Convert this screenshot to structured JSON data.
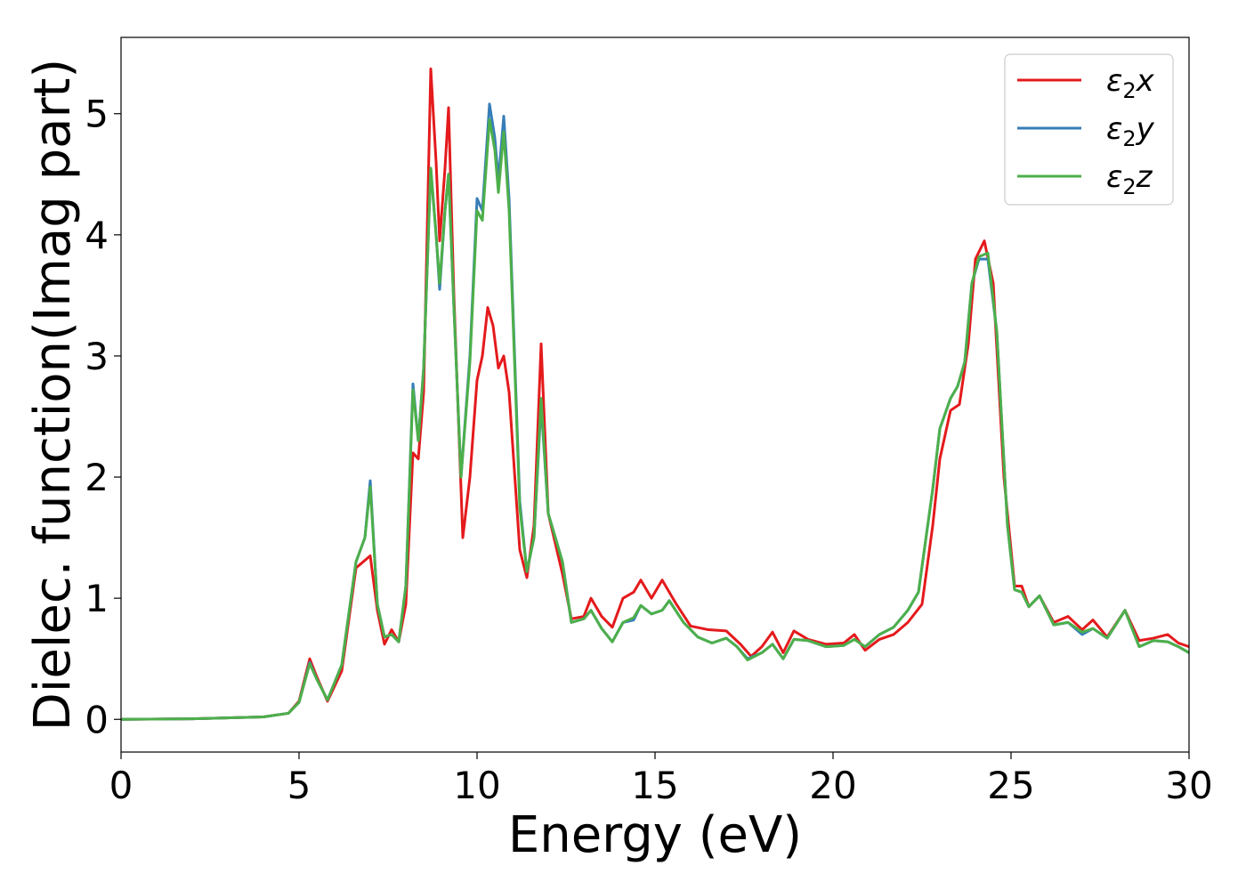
{
  "chart_data": {
    "type": "line",
    "title": "",
    "xlabel": "Energy (eV)",
    "ylabel": "Dielec. function(Imag part)",
    "xlim": [
      0,
      30
    ],
    "ylim": [
      -0.27,
      5.63
    ],
    "xticks": [
      0,
      5,
      10,
      15,
      20,
      25,
      30
    ],
    "yticks": [
      0,
      1,
      2,
      3,
      4,
      5
    ],
    "grid": false,
    "legend": "top-right",
    "series": [
      {
        "name": "ε2x",
        "label_base": "ε",
        "label_sub": "2",
        "label_var": "x",
        "color": "#e41a1c",
        "points": [
          [
            0,
            0
          ],
          [
            2,
            0.005
          ],
          [
            4,
            0.02
          ],
          [
            4.7,
            0.05
          ],
          [
            5.0,
            0.15
          ],
          [
            5.3,
            0.5
          ],
          [
            5.5,
            0.35
          ],
          [
            5.8,
            0.15
          ],
          [
            6.2,
            0.4
          ],
          [
            6.6,
            1.25
          ],
          [
            7.0,
            1.35
          ],
          [
            7.2,
            0.9
          ],
          [
            7.4,
            0.62
          ],
          [
            7.6,
            0.74
          ],
          [
            7.8,
            0.64
          ],
          [
            8.0,
            0.95
          ],
          [
            8.2,
            2.2
          ],
          [
            8.35,
            2.15
          ],
          [
            8.5,
            2.7
          ],
          [
            8.7,
            5.37
          ],
          [
            8.85,
            4.6
          ],
          [
            8.95,
            3.95
          ],
          [
            9.1,
            4.55
          ],
          [
            9.2,
            5.05
          ],
          [
            9.35,
            3.5
          ],
          [
            9.6,
            1.5
          ],
          [
            9.8,
            2.0
          ],
          [
            10.0,
            2.8
          ],
          [
            10.15,
            3.0
          ],
          [
            10.3,
            3.4
          ],
          [
            10.45,
            3.25
          ],
          [
            10.6,
            2.9
          ],
          [
            10.75,
            3.0
          ],
          [
            10.9,
            2.7
          ],
          [
            11.2,
            1.4
          ],
          [
            11.4,
            1.17
          ],
          [
            11.6,
            1.6
          ],
          [
            11.8,
            3.1
          ],
          [
            12.0,
            1.7
          ],
          [
            12.2,
            1.45
          ],
          [
            12.4,
            1.2
          ],
          [
            12.65,
            0.83
          ],
          [
            13.0,
            0.85
          ],
          [
            13.2,
            1.0
          ],
          [
            13.5,
            0.85
          ],
          [
            13.8,
            0.76
          ],
          [
            14.1,
            1.0
          ],
          [
            14.4,
            1.05
          ],
          [
            14.6,
            1.15
          ],
          [
            14.9,
            1.0
          ],
          [
            15.2,
            1.15
          ],
          [
            15.6,
            0.95
          ],
          [
            16.0,
            0.77
          ],
          [
            16.5,
            0.74
          ],
          [
            17.0,
            0.73
          ],
          [
            17.4,
            0.62
          ],
          [
            17.7,
            0.52
          ],
          [
            18.0,
            0.6
          ],
          [
            18.3,
            0.72
          ],
          [
            18.6,
            0.55
          ],
          [
            18.9,
            0.73
          ],
          [
            19.3,
            0.66
          ],
          [
            19.8,
            0.62
          ],
          [
            20.3,
            0.63
          ],
          [
            20.6,
            0.7
          ],
          [
            20.9,
            0.57
          ],
          [
            21.3,
            0.66
          ],
          [
            21.7,
            0.7
          ],
          [
            22.1,
            0.8
          ],
          [
            22.5,
            0.95
          ],
          [
            22.8,
            1.6
          ],
          [
            23.0,
            2.15
          ],
          [
            23.3,
            2.55
          ],
          [
            23.55,
            2.6
          ],
          [
            23.8,
            3.1
          ],
          [
            24.0,
            3.8
          ],
          [
            24.25,
            3.95
          ],
          [
            24.5,
            3.6
          ],
          [
            24.8,
            2.0
          ],
          [
            25.1,
            1.1
          ],
          [
            25.3,
            1.1
          ],
          [
            25.5,
            0.93
          ],
          [
            25.8,
            1.02
          ],
          [
            26.2,
            0.8
          ],
          [
            26.6,
            0.85
          ],
          [
            27.0,
            0.74
          ],
          [
            27.3,
            0.82
          ],
          [
            27.7,
            0.68
          ],
          [
            28.2,
            0.9
          ],
          [
            28.6,
            0.65
          ],
          [
            29.0,
            0.67
          ],
          [
            29.4,
            0.7
          ],
          [
            29.7,
            0.63
          ],
          [
            30.0,
            0.6
          ]
        ]
      },
      {
        "name": "ε2y",
        "label_base": "ε",
        "label_sub": "2",
        "label_var": "y",
        "color": "#377eb8",
        "points": [
          [
            0,
            0
          ],
          [
            2,
            0.005
          ],
          [
            4,
            0.02
          ],
          [
            4.7,
            0.05
          ],
          [
            5.0,
            0.14
          ],
          [
            5.3,
            0.47
          ],
          [
            5.5,
            0.33
          ],
          [
            5.8,
            0.16
          ],
          [
            6.2,
            0.45
          ],
          [
            6.6,
            1.3
          ],
          [
            6.85,
            1.5
          ],
          [
            7.0,
            1.97
          ],
          [
            7.2,
            0.95
          ],
          [
            7.4,
            0.68
          ],
          [
            7.6,
            0.7
          ],
          [
            7.8,
            0.64
          ],
          [
            8.0,
            1.1
          ],
          [
            8.2,
            2.77
          ],
          [
            8.35,
            2.3
          ],
          [
            8.5,
            2.9
          ],
          [
            8.7,
            4.55
          ],
          [
            8.85,
            4.0
          ],
          [
            8.95,
            3.55
          ],
          [
            9.1,
            4.2
          ],
          [
            9.2,
            4.5
          ],
          [
            9.35,
            3.4
          ],
          [
            9.55,
            2.0
          ],
          [
            9.8,
            3.0
          ],
          [
            10.0,
            4.3
          ],
          [
            10.15,
            4.2
          ],
          [
            10.35,
            5.08
          ],
          [
            10.5,
            4.8
          ],
          [
            10.6,
            4.45
          ],
          [
            10.75,
            4.98
          ],
          [
            10.9,
            4.3
          ],
          [
            11.2,
            1.8
          ],
          [
            11.4,
            1.22
          ],
          [
            11.6,
            1.5
          ],
          [
            11.8,
            2.6
          ],
          [
            12.0,
            1.7
          ],
          [
            12.2,
            1.5
          ],
          [
            12.4,
            1.3
          ],
          [
            12.65,
            0.8
          ],
          [
            13.0,
            0.83
          ],
          [
            13.2,
            0.9
          ],
          [
            13.5,
            0.75
          ],
          [
            13.8,
            0.64
          ],
          [
            14.1,
            0.8
          ],
          [
            14.4,
            0.82
          ],
          [
            14.6,
            0.94
          ],
          [
            14.9,
            0.87
          ],
          [
            15.2,
            0.9
          ],
          [
            15.4,
            0.98
          ],
          [
            15.8,
            0.8
          ],
          [
            16.2,
            0.68
          ],
          [
            16.6,
            0.63
          ],
          [
            17.0,
            0.67
          ],
          [
            17.3,
            0.6
          ],
          [
            17.6,
            0.5
          ],
          [
            18.0,
            0.55
          ],
          [
            18.3,
            0.62
          ],
          [
            18.6,
            0.5
          ],
          [
            18.9,
            0.66
          ],
          [
            19.3,
            0.65
          ],
          [
            19.8,
            0.6
          ],
          [
            20.3,
            0.61
          ],
          [
            20.6,
            0.66
          ],
          [
            20.9,
            0.6
          ],
          [
            21.3,
            0.7
          ],
          [
            21.7,
            0.76
          ],
          [
            22.1,
            0.9
          ],
          [
            22.4,
            1.05
          ],
          [
            22.8,
            1.9
          ],
          [
            23.0,
            2.4
          ],
          [
            23.3,
            2.65
          ],
          [
            23.5,
            2.75
          ],
          [
            23.7,
            2.95
          ],
          [
            23.9,
            3.6
          ],
          [
            24.1,
            3.8
          ],
          [
            24.35,
            3.8
          ],
          [
            24.6,
            3.2
          ],
          [
            24.9,
            1.6
          ],
          [
            25.1,
            1.07
          ],
          [
            25.3,
            1.05
          ],
          [
            25.5,
            0.93
          ],
          [
            25.8,
            1.02
          ],
          [
            26.2,
            0.78
          ],
          [
            26.6,
            0.8
          ],
          [
            27.0,
            0.7
          ],
          [
            27.3,
            0.75
          ],
          [
            27.7,
            0.67
          ],
          [
            28.2,
            0.9
          ],
          [
            28.6,
            0.6
          ],
          [
            29.0,
            0.65
          ],
          [
            29.4,
            0.64
          ],
          [
            29.7,
            0.6
          ],
          [
            30.0,
            0.55
          ]
        ]
      },
      {
        "name": "ε2z",
        "label_base": "ε",
        "label_sub": "2",
        "label_var": "z",
        "color": "#4daf4a",
        "points": [
          [
            0,
            0
          ],
          [
            2,
            0.005
          ],
          [
            4,
            0.02
          ],
          [
            4.7,
            0.05
          ],
          [
            5.0,
            0.14
          ],
          [
            5.3,
            0.46
          ],
          [
            5.5,
            0.33
          ],
          [
            5.8,
            0.16
          ],
          [
            6.2,
            0.45
          ],
          [
            6.6,
            1.3
          ],
          [
            6.85,
            1.5
          ],
          [
            7.0,
            1.92
          ],
          [
            7.2,
            0.95
          ],
          [
            7.4,
            0.68
          ],
          [
            7.6,
            0.7
          ],
          [
            7.8,
            0.64
          ],
          [
            8.0,
            1.1
          ],
          [
            8.2,
            2.72
          ],
          [
            8.35,
            2.3
          ],
          [
            8.5,
            2.9
          ],
          [
            8.7,
            4.55
          ],
          [
            8.85,
            4.0
          ],
          [
            8.95,
            3.6
          ],
          [
            9.1,
            4.2
          ],
          [
            9.2,
            4.5
          ],
          [
            9.35,
            3.4
          ],
          [
            9.55,
            2.0
          ],
          [
            9.8,
            2.95
          ],
          [
            10.0,
            4.2
          ],
          [
            10.15,
            4.12
          ],
          [
            10.35,
            4.95
          ],
          [
            10.5,
            4.7
          ],
          [
            10.6,
            4.35
          ],
          [
            10.75,
            4.85
          ],
          [
            10.9,
            4.2
          ],
          [
            11.2,
            1.75
          ],
          [
            11.4,
            1.22
          ],
          [
            11.6,
            1.5
          ],
          [
            11.8,
            2.65
          ],
          [
            12.0,
            1.7
          ],
          [
            12.2,
            1.5
          ],
          [
            12.4,
            1.3
          ],
          [
            12.65,
            0.8
          ],
          [
            13.0,
            0.83
          ],
          [
            13.2,
            0.9
          ],
          [
            13.5,
            0.75
          ],
          [
            13.8,
            0.64
          ],
          [
            14.1,
            0.8
          ],
          [
            14.4,
            0.84
          ],
          [
            14.6,
            0.94
          ],
          [
            14.9,
            0.87
          ],
          [
            15.2,
            0.9
          ],
          [
            15.4,
            0.98
          ],
          [
            15.8,
            0.8
          ],
          [
            16.2,
            0.68
          ],
          [
            16.6,
            0.63
          ],
          [
            17.0,
            0.67
          ],
          [
            17.3,
            0.6
          ],
          [
            17.6,
            0.49
          ],
          [
            18.0,
            0.55
          ],
          [
            18.3,
            0.62
          ],
          [
            18.6,
            0.5
          ],
          [
            18.9,
            0.66
          ],
          [
            19.3,
            0.65
          ],
          [
            19.8,
            0.6
          ],
          [
            20.3,
            0.61
          ],
          [
            20.6,
            0.66
          ],
          [
            20.9,
            0.6
          ],
          [
            21.3,
            0.7
          ],
          [
            21.7,
            0.76
          ],
          [
            22.1,
            0.9
          ],
          [
            22.4,
            1.05
          ],
          [
            22.8,
            1.9
          ],
          [
            23.0,
            2.4
          ],
          [
            23.3,
            2.65
          ],
          [
            23.5,
            2.75
          ],
          [
            23.7,
            2.95
          ],
          [
            23.9,
            3.6
          ],
          [
            24.1,
            3.82
          ],
          [
            24.35,
            3.85
          ],
          [
            24.6,
            3.2
          ],
          [
            24.9,
            1.6
          ],
          [
            25.1,
            1.07
          ],
          [
            25.3,
            1.05
          ],
          [
            25.5,
            0.93
          ],
          [
            25.8,
            1.02
          ],
          [
            26.2,
            0.78
          ],
          [
            26.6,
            0.8
          ],
          [
            27.0,
            0.72
          ],
          [
            27.3,
            0.75
          ],
          [
            27.7,
            0.67
          ],
          [
            28.2,
            0.9
          ],
          [
            28.6,
            0.6
          ],
          [
            29.0,
            0.65
          ],
          [
            29.4,
            0.64
          ],
          [
            29.7,
            0.6
          ],
          [
            30.0,
            0.55
          ]
        ]
      }
    ]
  }
}
